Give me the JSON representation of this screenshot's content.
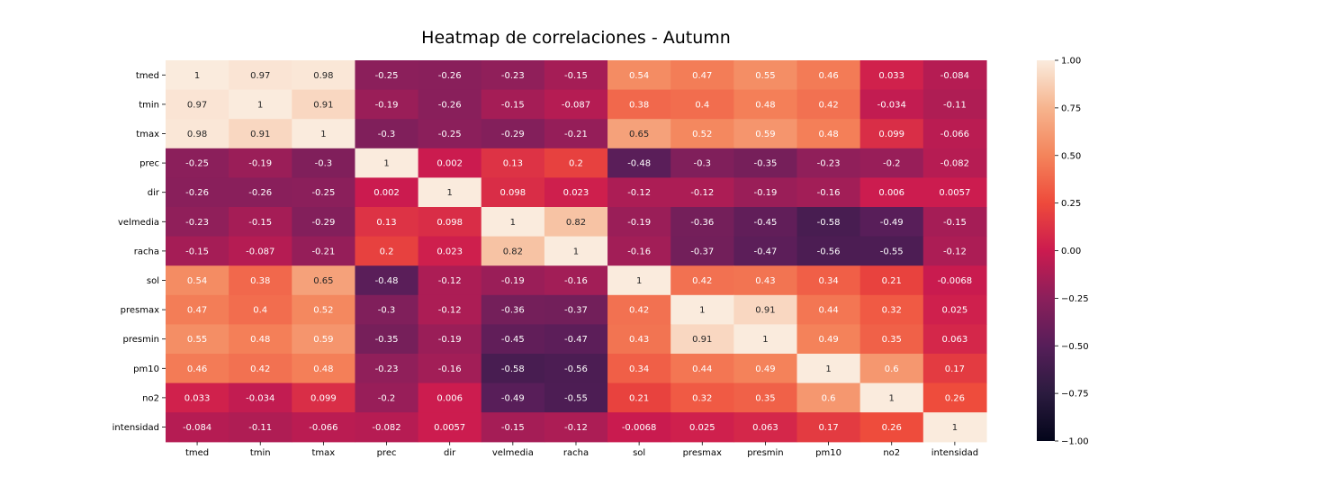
{
  "chart_data": {
    "type": "heatmap",
    "title": "Heatmap de correlaciones - Autumn",
    "x_labels": [
      "tmed",
      "tmin",
      "tmax",
      "prec",
      "dir",
      "velmedia",
      "racha",
      "sol",
      "presmax",
      "presmin",
      "pm10",
      "no2",
      "intensidad"
    ],
    "y_labels": [
      "tmed",
      "tmin",
      "tmax",
      "prec",
      "dir",
      "velmedia",
      "racha",
      "sol",
      "presmax",
      "presmin",
      "pm10",
      "no2",
      "intensidad"
    ],
    "values": [
      [
        1,
        0.97,
        0.98,
        -0.25,
        -0.26,
        -0.23,
        -0.15,
        0.54,
        0.47,
        0.55,
        0.46,
        0.033,
        -0.084
      ],
      [
        0.97,
        1,
        0.91,
        -0.19,
        -0.26,
        -0.15,
        -0.087,
        0.38,
        0.4,
        0.48,
        0.42,
        -0.034,
        -0.11
      ],
      [
        0.98,
        0.91,
        1,
        -0.3,
        -0.25,
        -0.29,
        -0.21,
        0.65,
        0.52,
        0.59,
        0.48,
        0.099,
        -0.066
      ],
      [
        -0.25,
        -0.19,
        -0.3,
        1,
        0.002,
        0.13,
        0.2,
        -0.48,
        -0.3,
        -0.35,
        -0.23,
        -0.2,
        -0.082
      ],
      [
        -0.26,
        -0.26,
        -0.25,
        0.002,
        1,
        0.098,
        0.023,
        -0.12,
        -0.12,
        -0.19,
        -0.16,
        0.006,
        0.0057
      ],
      [
        -0.23,
        -0.15,
        -0.29,
        0.13,
        0.098,
        1,
        0.82,
        -0.19,
        -0.36,
        -0.45,
        -0.58,
        -0.49,
        -0.15
      ],
      [
        -0.15,
        -0.087,
        -0.21,
        0.2,
        0.023,
        0.82,
        1,
        -0.16,
        -0.37,
        -0.47,
        -0.56,
        -0.55,
        -0.12
      ],
      [
        0.54,
        0.38,
        0.65,
        -0.48,
        -0.12,
        -0.19,
        -0.16,
        1,
        0.42,
        0.43,
        0.34,
        0.21,
        -0.0068
      ],
      [
        0.47,
        0.4,
        0.52,
        -0.3,
        -0.12,
        -0.36,
        -0.37,
        0.42,
        1,
        0.91,
        0.44,
        0.32,
        0.025
      ],
      [
        0.55,
        0.48,
        0.59,
        -0.35,
        -0.19,
        -0.45,
        -0.47,
        0.43,
        0.91,
        1,
        0.49,
        0.35,
        0.063
      ],
      [
        0.46,
        0.42,
        0.48,
        -0.23,
        -0.16,
        -0.58,
        -0.56,
        0.34,
        0.44,
        0.49,
        1,
        0.6,
        0.17
      ],
      [
        0.033,
        -0.034,
        0.099,
        -0.2,
        0.006,
        -0.49,
        -0.55,
        0.21,
        0.32,
        0.35,
        0.6,
        1,
        0.26
      ],
      [
        -0.084,
        -0.11,
        -0.066,
        -0.082,
        0.0057,
        -0.15,
        -0.12,
        -0.0068,
        0.025,
        0.063,
        0.17,
        0.26,
        1
      ]
    ],
    "value_labels": [
      [
        "1",
        "0.97",
        "0.98",
        "-0.25",
        "-0.26",
        "-0.23",
        "-0.15",
        "0.54",
        "0.47",
        "0.55",
        "0.46",
        "0.033",
        "-0.084"
      ],
      [
        "0.97",
        "1",
        "0.91",
        "-0.19",
        "-0.26",
        "-0.15",
        "-0.087",
        "0.38",
        "0.4",
        "0.48",
        "0.42",
        "-0.034",
        "-0.11"
      ],
      [
        "0.98",
        "0.91",
        "1",
        "-0.3",
        "-0.25",
        "-0.29",
        "-0.21",
        "0.65",
        "0.52",
        "0.59",
        "0.48",
        "0.099",
        "-0.066"
      ],
      [
        "-0.25",
        "-0.19",
        "-0.3",
        "1",
        "0.002",
        "0.13",
        "0.2",
        "-0.48",
        "-0.3",
        "-0.35",
        "-0.23",
        "-0.2",
        "-0.082"
      ],
      [
        "-0.26",
        "-0.26",
        "-0.25",
        "0.002",
        "1",
        "0.098",
        "0.023",
        "-0.12",
        "-0.12",
        "-0.19",
        "-0.16",
        "0.006",
        "0.0057"
      ],
      [
        "-0.23",
        "-0.15",
        "-0.29",
        "0.13",
        "0.098",
        "1",
        "0.82",
        "-0.19",
        "-0.36",
        "-0.45",
        "-0.58",
        "-0.49",
        "-0.15"
      ],
      [
        "-0.15",
        "-0.087",
        "-0.21",
        "0.2",
        "0.023",
        "0.82",
        "1",
        "-0.16",
        "-0.37",
        "-0.47",
        "-0.56",
        "-0.55",
        "-0.12"
      ],
      [
        "0.54",
        "0.38",
        "0.65",
        "-0.48",
        "-0.12",
        "-0.19",
        "-0.16",
        "1",
        "0.42",
        "0.43",
        "0.34",
        "0.21",
        "-0.0068"
      ],
      [
        "0.47",
        "0.4",
        "0.52",
        "-0.3",
        "-0.12",
        "-0.36",
        "-0.37",
        "0.42",
        "1",
        "0.91",
        "0.44",
        "0.32",
        "0.025"
      ],
      [
        "0.55",
        "0.48",
        "0.59",
        "-0.35",
        "-0.19",
        "-0.45",
        "-0.47",
        "0.43",
        "0.91",
        "1",
        "0.49",
        "0.35",
        "0.063"
      ],
      [
        "0.46",
        "0.42",
        "0.48",
        "-0.23",
        "-0.16",
        "-0.58",
        "-0.56",
        "0.34",
        "0.44",
        "0.49",
        "1",
        "0.6",
        "0.17"
      ],
      [
        "0.033",
        "-0.034",
        "0.099",
        "-0.2",
        "0.006",
        "-0.49",
        "-0.55",
        "0.21",
        "0.32",
        "0.35",
        "0.6",
        "1",
        "0.26"
      ],
      [
        "-0.084",
        "-0.11",
        "-0.066",
        "-0.082",
        "0.0057",
        "-0.15",
        "-0.12",
        "-0.0068",
        "0.025",
        "0.063",
        "0.17",
        "0.26",
        "1"
      ]
    ],
    "vmin": -1,
    "vmax": 1,
    "colorbar": {
      "ticks": [
        1,
        0.75,
        0.5,
        0.25,
        0,
        -0.25,
        -0.5,
        -0.75,
        -1
      ],
      "tick_labels": [
        "1.00",
        "0.75",
        "0.50",
        "0.25",
        "0.00",
        "−0.25",
        "−0.50",
        "−0.75",
        "−1.00"
      ],
      "placement": "right"
    },
    "colormap": {
      "name": "rocket",
      "stops": [
        [
          "-1.00",
          "#03051a"
        ],
        [
          "-0.75",
          "#2b1b3f"
        ],
        [
          "-0.50",
          "#561e59"
        ],
        [
          "-0.25",
          "#8b1f5b"
        ],
        [
          "0.00",
          "#cb1b4f"
        ],
        [
          "0.25",
          "#ee4a3b"
        ],
        [
          "0.50",
          "#f4845b"
        ],
        [
          "0.75",
          "#f6b48e"
        ],
        [
          "1.00",
          "#faebdd"
        ]
      ]
    },
    "grid": false
  }
}
